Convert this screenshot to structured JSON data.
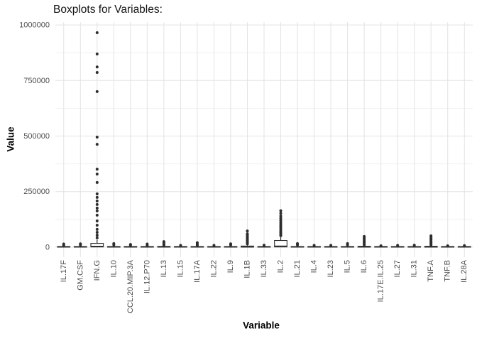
{
  "chart_data": {
    "type": "boxplot",
    "title": "Boxplots for Variables:",
    "xlabel": "Variable",
    "ylabel": "Value",
    "ylim": [
      0,
      1000000
    ],
    "yticks": [
      0,
      250000,
      500000,
      750000,
      1000000
    ],
    "yticks_minor": [
      125000,
      375000,
      625000,
      875000
    ],
    "grid": "horizontal major+minor, vertical major per category",
    "legend": "none",
    "colors": {
      "background": "#ffffff",
      "grid_major": "#e3e3e3",
      "grid_minor": "#f1f1f1",
      "box_stroke": "#2d2d2d",
      "box_fill": "#ffffff",
      "outlier": "#2d2d2d",
      "tick_label": "#4d4d4d",
      "title_text": "#141414"
    },
    "categories": [
      "IL.17F",
      "GM.CSF",
      "IFN.G",
      "IL.10",
      "CCL.20.MIP.3A",
      "IL.12.P70",
      "IL.13",
      "IL.15",
      "IL.17A",
      "IL.22",
      "IL.9",
      "IL.1B",
      "IL.33",
      "IL.2",
      "IL.21",
      "IL.4",
      "IL.23",
      "IL.5",
      "IL.6",
      "IL.17E.IL.25",
      "IL.27",
      "IL.31",
      "TNF.A",
      "TNF.B",
      "IL.28A"
    ],
    "boxes": [
      {
        "name": "IL.17F",
        "q1": 0,
        "median": 1500,
        "q3": 3000,
        "whisker_low": 0,
        "whisker_high": 6000,
        "outliers": [
          9000,
          14000
        ]
      },
      {
        "name": "GM.CSF",
        "q1": 0,
        "median": 1500,
        "q3": 3000,
        "whisker_low": 0,
        "whisker_high": 6000,
        "outliers": [
          10000,
          15000
        ]
      },
      {
        "name": "IFN.G",
        "q1": 1000,
        "median": 4000,
        "q3": 17000,
        "whisker_low": 0,
        "whisker_high": 33000,
        "outliers": [
          42000,
          54000,
          67000,
          80000,
          99000,
          118000,
          144000,
          163000,
          176000,
          192000,
          208000,
          224000,
          240000,
          291000,
          329000,
          351000,
          463000,
          495000,
          700000,
          786000,
          811000,
          869000,
          965000
        ]
      },
      {
        "name": "IL.10",
        "q1": 0,
        "median": 1500,
        "q3": 3000,
        "whisker_low": 0,
        "whisker_high": 6000,
        "outliers": [
          10000,
          16000
        ]
      },
      {
        "name": "CCL.20.MIP.3A",
        "q1": 0,
        "median": 1500,
        "q3": 3000,
        "whisker_low": 0,
        "whisker_high": 5000,
        "outliers": [
          8000,
          12000
        ]
      },
      {
        "name": "IL.12.P70",
        "q1": 0,
        "median": 1500,
        "q3": 3000,
        "whisker_low": 0,
        "whisker_high": 5000,
        "outliers": [
          9000,
          14000
        ]
      },
      {
        "name": "IL.13",
        "q1": 0,
        "median": 1500,
        "q3": 3500,
        "whisker_low": 0,
        "whisker_high": 6000,
        "outliers": [
          9000,
          14000,
          20000,
          25000
        ]
      },
      {
        "name": "IL.15",
        "q1": 0,
        "median": 1500,
        "q3": 3000,
        "whisker_low": 0,
        "whisker_high": 5000,
        "outliers": [
          8000
        ]
      },
      {
        "name": "IL.17A",
        "q1": 0,
        "median": 1500,
        "q3": 3000,
        "whisker_low": 0,
        "whisker_high": 6000,
        "outliers": [
          9000,
          14000,
          20000
        ]
      },
      {
        "name": "IL.22",
        "q1": 0,
        "median": 1500,
        "q3": 3000,
        "whisker_low": 0,
        "whisker_high": 5000,
        "outliers": [
          8000
        ]
      },
      {
        "name": "IL.9",
        "q1": 0,
        "median": 1500,
        "q3": 3000,
        "whisker_low": 0,
        "whisker_high": 5000,
        "outliers": [
          10000,
          15000
        ]
      },
      {
        "name": "IL.1B",
        "q1": 0,
        "median": 2000,
        "q3": 5000,
        "whisker_low": 0,
        "whisker_high": 9000,
        "outliers": [
          15000,
          20000,
          25000,
          30000,
          36000,
          42000,
          48000,
          54000,
          60000,
          73000
        ]
      },
      {
        "name": "IL.33",
        "q1": 0,
        "median": 1500,
        "q3": 3000,
        "whisker_low": 0,
        "whisker_high": 5000,
        "outliers": [
          9000
        ]
      },
      {
        "name": "IL.2",
        "q1": 1000,
        "median": 5000,
        "q3": 30000,
        "whisker_low": 0,
        "whisker_high": 47000,
        "outliers": [
          52000,
          58000,
          65000,
          72000,
          80000,
          88000,
          96000,
          104000,
          112000,
          121000,
          130000,
          140000,
          152000,
          164000
        ]
      },
      {
        "name": "IL.21",
        "q1": 0,
        "median": 1500,
        "q3": 3000,
        "whisker_low": 0,
        "whisker_high": 5000,
        "outliers": [
          10000,
          16000
        ]
      },
      {
        "name": "IL.4",
        "q1": 0,
        "median": 1500,
        "q3": 3000,
        "whisker_low": 0,
        "whisker_high": 5000,
        "outliers": [
          8000
        ]
      },
      {
        "name": "IL.23",
        "q1": 0,
        "median": 1500,
        "q3": 3000,
        "whisker_low": 0,
        "whisker_high": 5000,
        "outliers": [
          8000
        ]
      },
      {
        "name": "IL.5",
        "q1": 0,
        "median": 1500,
        "q3": 3000,
        "whisker_low": 0,
        "whisker_high": 5000,
        "outliers": [
          10000,
          16000
        ]
      },
      {
        "name": "IL.6",
        "q1": 0,
        "median": 2000,
        "q3": 4000,
        "whisker_low": 0,
        "whisker_high": 7000,
        "outliers": [
          10000,
          15000,
          20000,
          25000,
          30000,
          36000,
          42000,
          48000
        ]
      },
      {
        "name": "IL.17E.IL.25",
        "q1": 0,
        "median": 1500,
        "q3": 3000,
        "whisker_low": 0,
        "whisker_high": 5000,
        "outliers": [
          6000
        ]
      },
      {
        "name": "IL.27",
        "q1": 0,
        "median": 1500,
        "q3": 3000,
        "whisker_low": 0,
        "whisker_high": 5000,
        "outliers": [
          8000
        ]
      },
      {
        "name": "IL.31",
        "q1": 0,
        "median": 1500,
        "q3": 3000,
        "whisker_low": 0,
        "whisker_high": 5000,
        "outliers": [
          9000
        ]
      },
      {
        "name": "TNF.A",
        "q1": 0,
        "median": 2000,
        "q3": 4000,
        "whisker_low": 0,
        "whisker_high": 7000,
        "outliers": [
          10000,
          15000,
          21000,
          27000,
          33000,
          39000,
          45000,
          51000
        ]
      },
      {
        "name": "TNF.B",
        "q1": 0,
        "median": 1500,
        "q3": 3000,
        "whisker_low": 0,
        "whisker_high": 5000,
        "outliers": [
          6000
        ]
      },
      {
        "name": "IL.28A",
        "q1": 0,
        "median": 1500,
        "q3": 3000,
        "whisker_low": 0,
        "whisker_high": 5000,
        "outliers": [
          7000
        ]
      }
    ]
  }
}
